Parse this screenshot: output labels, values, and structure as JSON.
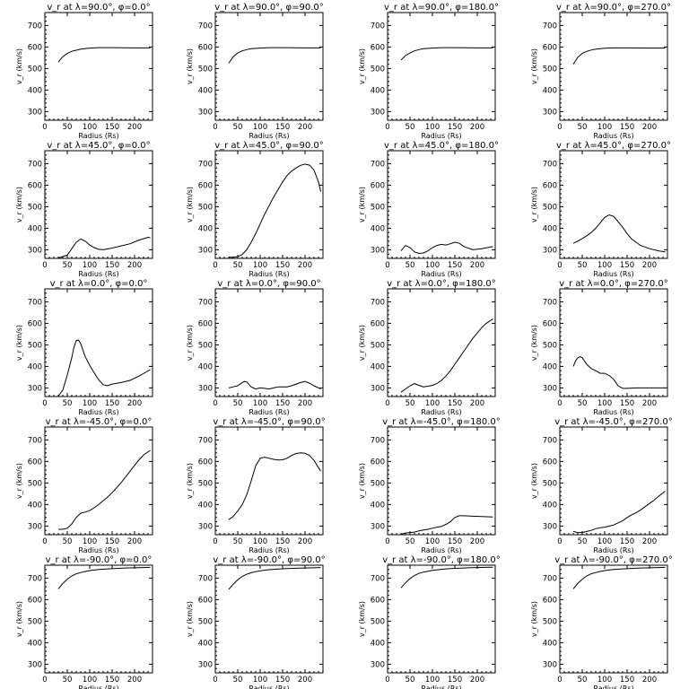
{
  "chart_data": {
    "type": "line",
    "layout": "grid-5x4",
    "xlabel": "Radius (Rs)",
    "ylabel": "v_r (km/s)",
    "xlim": [
      0,
      240
    ],
    "ylim": [
      260,
      760
    ],
    "xticks": [
      0,
      50,
      100,
      150,
      200
    ],
    "yticks": [
      300,
      400,
      500,
      600,
      700
    ],
    "grid": false,
    "panels": [
      {
        "title": "v_r at λ=90.0°, φ=0.0°",
        "x": [
          30,
          40,
          50,
          60,
          70,
          80,
          100,
          120,
          150,
          200,
          235
        ],
        "y": [
          530,
          555,
          570,
          580,
          585,
          590,
          595,
          597,
          597,
          596,
          596
        ]
      },
      {
        "title": "v_r at λ=90.0°, φ=90.0°",
        "x": [
          30,
          40,
          50,
          60,
          70,
          80,
          100,
          120,
          150,
          200,
          235
        ],
        "y": [
          525,
          555,
          572,
          582,
          588,
          592,
          595,
          597,
          597,
          596,
          596
        ]
      },
      {
        "title": "v_r at λ=90.0°, φ=180.0°",
        "x": [
          30,
          40,
          50,
          60,
          70,
          80,
          100,
          120,
          150,
          200,
          235
        ],
        "y": [
          540,
          560,
          572,
          582,
          588,
          592,
          595,
          597,
          597,
          596,
          596
        ]
      },
      {
        "title": "v_r at λ=90.0°, φ=270.0°",
        "x": [
          30,
          40,
          50,
          60,
          70,
          80,
          100,
          120,
          150,
          200,
          235
        ],
        "y": [
          520,
          552,
          570,
          580,
          586,
          590,
          594,
          596,
          596,
          595,
          595
        ]
      },
      {
        "title": "v_r at λ=45.0°, φ=0.0°",
        "x": [
          30,
          50,
          60,
          70,
          80,
          90,
          100,
          110,
          120,
          130,
          150,
          170,
          190,
          210,
          230,
          235
        ],
        "y": [
          262,
          275,
          305,
          335,
          350,
          340,
          322,
          310,
          302,
          300,
          308,
          318,
          328,
          345,
          358,
          356
        ]
      },
      {
        "title": "v_r at λ=45.0°, φ=90.0°",
        "x": [
          30,
          40,
          50,
          60,
          70,
          80,
          90,
          100,
          110,
          120,
          130,
          140,
          150,
          160,
          170,
          180,
          190,
          200,
          210,
          220,
          230,
          235
        ],
        "y": [
          265,
          265,
          268,
          278,
          300,
          335,
          375,
          420,
          465,
          505,
          545,
          580,
          615,
          645,
          665,
          680,
          692,
          698,
          693,
          670,
          615,
          570
        ]
      },
      {
        "title": "v_r at λ=45.0°, φ=180.0°",
        "x": [
          30,
          40,
          50,
          60,
          70,
          80,
          90,
          100,
          110,
          120,
          130,
          140,
          150,
          160,
          170,
          190,
          210,
          235
        ],
        "y": [
          295,
          320,
          310,
          290,
          283,
          285,
          295,
          310,
          320,
          325,
          322,
          328,
          335,
          330,
          315,
          300,
          305,
          315
        ]
      },
      {
        "title": "v_r at λ=45.0°, φ=270.0°",
        "x": [
          30,
          40,
          50,
          60,
          70,
          80,
          90,
          100,
          110,
          120,
          130,
          140,
          150,
          160,
          170,
          180,
          200,
          220,
          235
        ],
        "y": [
          330,
          340,
          352,
          365,
          380,
          400,
          425,
          450,
          462,
          455,
          430,
          405,
          375,
          350,
          335,
          320,
          305,
          295,
          290
        ]
      },
      {
        "title": "v_r at λ=0.0°, φ=0.0°",
        "x": [
          30,
          40,
          50,
          60,
          65,
          70,
          75,
          80,
          90,
          100,
          110,
          120,
          130,
          140,
          150,
          170,
          190,
          210,
          235
        ],
        "y": [
          262,
          290,
          360,
          440,
          490,
          520,
          522,
          505,
          445,
          405,
          370,
          338,
          315,
          310,
          318,
          325,
          335,
          355,
          385
        ]
      },
      {
        "title": "v_r at λ=0.0°, φ=90.0°",
        "x": [
          30,
          40,
          50,
          60,
          65,
          70,
          80,
          90,
          100,
          110,
          120,
          130,
          140,
          150,
          160,
          170,
          180,
          190,
          200,
          210,
          220,
          235
        ],
        "y": [
          300,
          305,
          310,
          325,
          330,
          328,
          305,
          295,
          300,
          298,
          295,
          300,
          305,
          305,
          305,
          310,
          318,
          325,
          330,
          322,
          310,
          295
        ]
      },
      {
        "title": "v_r at λ=0.0°, φ=180.0°",
        "x": [
          30,
          40,
          50,
          60,
          70,
          80,
          90,
          100,
          110,
          120,
          130,
          140,
          150,
          160,
          170,
          180,
          190,
          200,
          210,
          220,
          235
        ],
        "y": [
          280,
          295,
          310,
          320,
          312,
          305,
          308,
          312,
          320,
          335,
          355,
          380,
          410,
          440,
          470,
          500,
          530,
          555,
          580,
          600,
          620
        ]
      },
      {
        "title": "v_r at λ=0.0°, φ=270.0°",
        "x": [
          30,
          35,
          40,
          45,
          50,
          55,
          60,
          70,
          80,
          90,
          100,
          110,
          120,
          130,
          140,
          150,
          170,
          190,
          210,
          235
        ],
        "y": [
          400,
          425,
          440,
          445,
          440,
          425,
          410,
          390,
          380,
          368,
          368,
          358,
          340,
          310,
          298,
          298,
          300,
          300,
          300,
          300
        ]
      },
      {
        "title": "v_r at λ=-45.0°, φ=0.0°",
        "x": [
          30,
          40,
          50,
          60,
          70,
          80,
          90,
          100,
          110,
          120,
          130,
          140,
          150,
          160,
          170,
          180,
          190,
          200,
          210,
          220,
          235
        ],
        "y": [
          285,
          285,
          290,
          310,
          340,
          360,
          365,
          372,
          385,
          400,
          418,
          435,
          455,
          478,
          502,
          528,
          555,
          582,
          608,
          630,
          652
        ]
      },
      {
        "title": "v_r at λ=-45.0°, φ=90.0°",
        "x": [
          30,
          40,
          50,
          60,
          70,
          80,
          90,
          100,
          110,
          120,
          130,
          140,
          150,
          160,
          170,
          180,
          190,
          200,
          210,
          220,
          235
        ],
        "y": [
          330,
          345,
          370,
          400,
          445,
          510,
          580,
          615,
          620,
          615,
          610,
          607,
          608,
          615,
          628,
          637,
          640,
          638,
          628,
          605,
          555
        ]
      },
      {
        "title": "v_r at λ=-45.0°, φ=180.0°",
        "x": [
          30,
          40,
          50,
          60,
          70,
          80,
          90,
          100,
          110,
          120,
          130,
          140,
          150,
          160,
          170,
          190,
          210,
          235
        ],
        "y": [
          262,
          268,
          270,
          272,
          278,
          282,
          285,
          290,
          295,
          298,
          308,
          320,
          340,
          348,
          348,
          346,
          344,
          342
        ]
      },
      {
        "title": "v_r at λ=-45.0°, φ=270.0°",
        "x": [
          30,
          40,
          50,
          60,
          70,
          80,
          90,
          100,
          110,
          120,
          130,
          140,
          150,
          160,
          170,
          180,
          190,
          200,
          210,
          220,
          235
        ],
        "y": [
          275,
          270,
          270,
          275,
          280,
          288,
          292,
          295,
          300,
          305,
          315,
          325,
          340,
          352,
          362,
          375,
          390,
          405,
          420,
          438,
          462
        ]
      },
      {
        "title": "v_r at λ=-90.0°, φ=0.0°",
        "x": [
          30,
          40,
          50,
          60,
          70,
          80,
          90,
          100,
          120,
          140,
          160,
          180,
          200,
          220,
          235
        ],
        "y": [
          650,
          675,
          695,
          710,
          720,
          726,
          731,
          735,
          740,
          743,
          745,
          747,
          748,
          749,
          750
        ]
      },
      {
        "title": "v_r at λ=-90.0°, φ=90.0°",
        "x": [
          30,
          40,
          50,
          60,
          70,
          80,
          90,
          100,
          120,
          140,
          160,
          180,
          200,
          220,
          235
        ],
        "y": [
          648,
          672,
          692,
          708,
          718,
          725,
          730,
          734,
          739,
          742,
          744,
          746,
          747,
          748,
          749
        ]
      },
      {
        "title": "v_r at λ=-90.0°, φ=180.0°",
        "x": [
          30,
          40,
          50,
          60,
          70,
          80,
          90,
          100,
          120,
          140,
          160,
          180,
          200,
          220,
          235
        ],
        "y": [
          655,
          678,
          698,
          712,
          722,
          728,
          732,
          736,
          741,
          744,
          746,
          748,
          749,
          750,
          751
        ]
      },
      {
        "title": "v_r at λ=-90.0°, φ=270.0°",
        "x": [
          30,
          40,
          50,
          60,
          70,
          80,
          90,
          100,
          120,
          140,
          160,
          180,
          200,
          220,
          235
        ],
        "y": [
          650,
          675,
          695,
          710,
          720,
          726,
          731,
          735,
          740,
          743,
          745,
          747,
          748,
          749,
          750
        ]
      }
    ]
  }
}
